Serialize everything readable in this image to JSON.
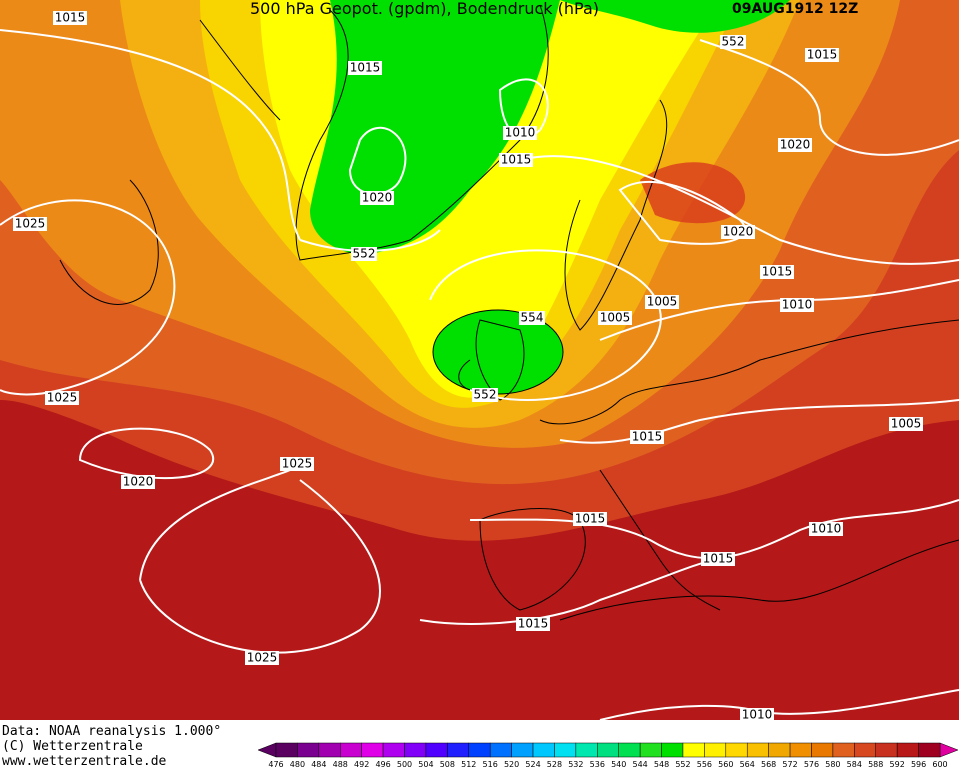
{
  "header": {
    "title": "500 hPa Geopot. (gpdm), Bodendruck (hPa)",
    "date": "09AUG1912 12Z"
  },
  "map": {
    "contour_labels": [
      "1015",
      "1015",
      "1010",
      "1015",
      "1020",
      "552",
      "552",
      "1015",
      "1020",
      "1020",
      "1015",
      "1010",
      "1005",
      "1005",
      "554",
      "552",
      "1025",
      "1025",
      "1020",
      "1025",
      "1015",
      "1005",
      "1015",
      "1010",
      "1015",
      "1015",
      "1025",
      "1010"
    ]
  },
  "footer": {
    "lines": [
      "Data: NOAA reanalysis 1.000°",
      "(C) Wetterzentrale",
      "www.wetterzentrale.de"
    ]
  },
  "colorbar": {
    "values": [
      476,
      480,
      484,
      488,
      492,
      496,
      500,
      504,
      508,
      512,
      516,
      520,
      524,
      528,
      532,
      536,
      540,
      544,
      548,
      552,
      556,
      560,
      564,
      568,
      572,
      576,
      580,
      584,
      588,
      592,
      596,
      600
    ],
    "colors": [
      "#5a0060",
      "#7a0090",
      "#a000b0",
      "#c800d0",
      "#e000e8",
      "#b000f0",
      "#8000f8",
      "#5000ff",
      "#2020ff",
      "#0040ff",
      "#0070ff",
      "#00a0ff",
      "#00c8ff",
      "#00e0f0",
      "#00e8b0",
      "#00e080",
      "#00e050",
      "#20e020",
      "#00e000",
      "#ffff00",
      "#fff000",
      "#ffd800",
      "#f8c000",
      "#f0a800",
      "#f09000",
      "#e87800",
      "#e06020",
      "#d84820",
      "#c83020",
      "#b81818",
      "#a00020"
    ]
  }
}
